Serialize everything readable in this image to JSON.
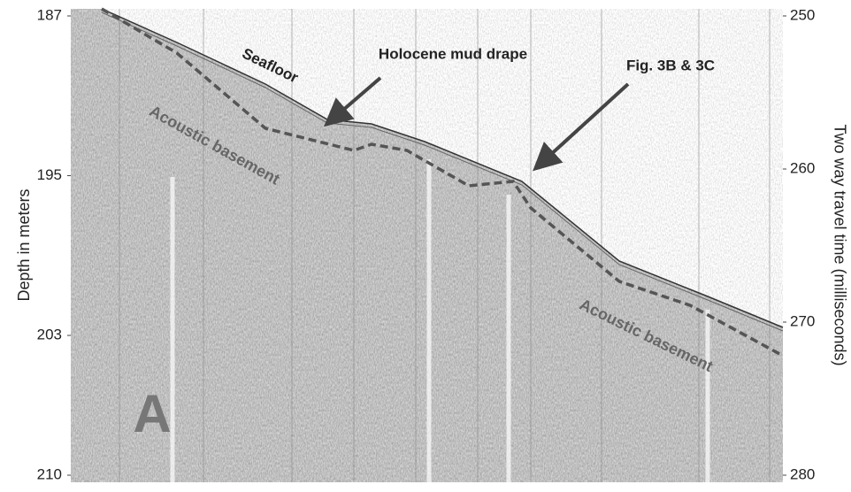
{
  "chart_data": {
    "type": "seismic-profile",
    "ylabel": "Depth in meters",
    "y2label": "Two way travel time (milliseconds)",
    "ylim": [
      187,
      210
    ],
    "yticks": [
      187,
      195,
      203,
      210
    ],
    "y2lim": [
      250,
      280
    ],
    "y2ticks": [
      250,
      260,
      270,
      280
    ],
    "annotations": [
      "Seafloor",
      "Holocene mud drape",
      "Fig. 3B & 3C",
      "Acoustic basement",
      "Acoustic basement"
    ],
    "panel_label": "A"
  }
}
